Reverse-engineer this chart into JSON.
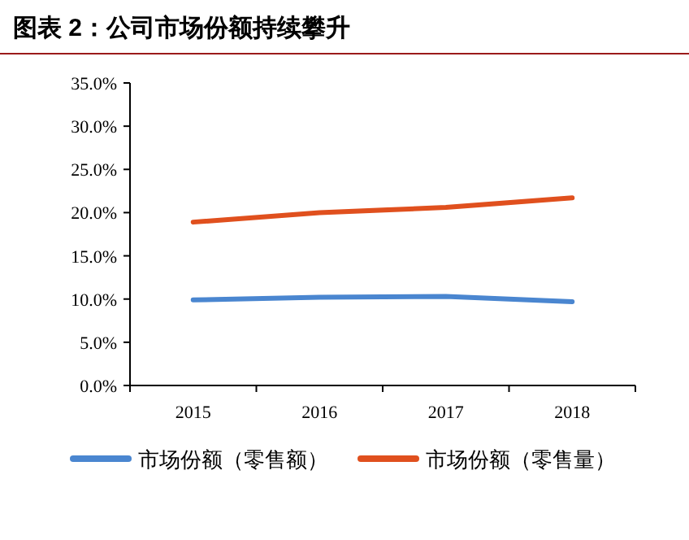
{
  "chart_data": {
    "type": "line",
    "title": "图表 2：公司市场份额持续攀升",
    "categories": [
      "2015",
      "2016",
      "2017",
      "2018"
    ],
    "series": [
      {
        "name": "市场份额（零售额）",
        "color": "#4a86d0",
        "values": [
          9.9,
          10.2,
          10.3,
          9.7
        ]
      },
      {
        "name": "市场份额（零售量）",
        "color": "#e0501e",
        "values": [
          18.9,
          20.0,
          20.6,
          21.7
        ]
      }
    ],
    "ylim": [
      0,
      35
    ],
    "yticks": [
      {
        "value": 0,
        "label": "0.0%"
      },
      {
        "value": 5,
        "label": "5.0%"
      },
      {
        "value": 10,
        "label": "10.0%"
      },
      {
        "value": 15,
        "label": "15.0%"
      },
      {
        "value": 20,
        "label": "20.0%"
      },
      {
        "value": 25,
        "label": "25.0%"
      },
      {
        "value": 30,
        "label": "30.0%"
      },
      {
        "value": 35,
        "label": "35.0%"
      }
    ],
    "legend": "bottom",
    "grid": false,
    "marker": "none",
    "line_style": "solid"
  }
}
